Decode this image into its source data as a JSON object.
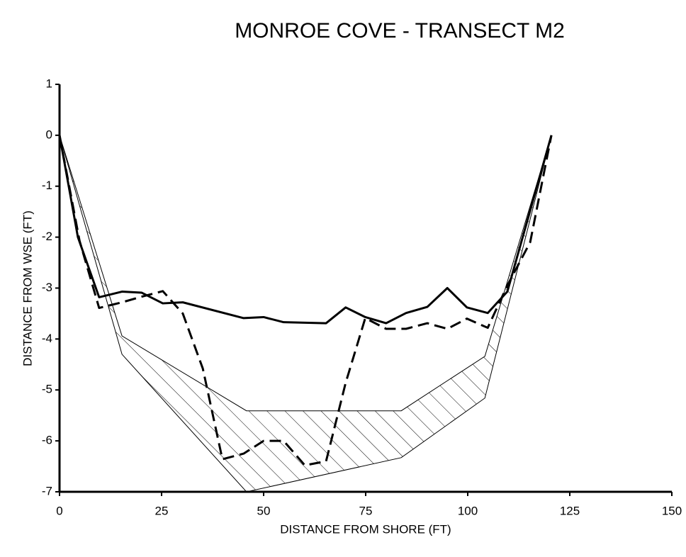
{
  "chart_data": {
    "type": "line",
    "title": "MONROE COVE - TRANSECT M2",
    "xlabel": "DISTANCE FROM SHORE (FT)",
    "ylabel": "DISTANCE FROM WSE (FT)",
    "xlim": [
      0,
      150
    ],
    "xticks": [
      0,
      25,
      50,
      75,
      100,
      125,
      150
    ],
    "ylim": [
      -7,
      1
    ],
    "yticks": [
      1,
      0,
      -1,
      -2,
      -3,
      -4,
      -5,
      -6,
      -7
    ],
    "grid": false,
    "series": [
      {
        "color": "#000000",
        "dash": false,
        "x": [
          0,
          4.5,
          9.7,
          15.3,
          20.1,
          25.3,
          30.2,
          45.1,
          50,
          54.9,
          65.3,
          70.1,
          74.9,
          80,
          84.9,
          90.1,
          95,
          99.8,
          104.9,
          109.7,
          120.5
        ],
        "values": [
          0,
          -2.0,
          -3.18,
          -3.07,
          -3.09,
          -3.3,
          -3.28,
          -3.59,
          -3.57,
          -3.67,
          -3.69,
          -3.38,
          -3.57,
          -3.69,
          -3.49,
          -3.37,
          -3.0,
          -3.38,
          -3.49,
          -3.07,
          0
        ]
      },
      {
        "color": "#000000",
        "dash": true,
        "x": [
          0,
          4.9,
          9.7,
          15.3,
          20.1,
          25.3,
          30.2,
          35.1,
          39.9,
          45.1,
          50,
          54.9,
          60.1,
          65.3,
          70.1,
          74.9,
          80,
          84.9,
          90.1,
          95,
          99.8,
          104.9,
          109.7,
          115.3,
          120.5
        ],
        "values": [
          0,
          -2.07,
          -3.39,
          -3.28,
          -3.17,
          -3.06,
          -3.5,
          -4.58,
          -6.36,
          -6.25,
          -6.0,
          -6.0,
          -6.48,
          -6.4,
          -4.86,
          -3.59,
          -3.8,
          -3.8,
          -3.69,
          -3.8,
          -3.6,
          -3.78,
          -2.95,
          -2.1,
          0
        ]
      }
    ],
    "band": {
      "color": "#000000",
      "x": [
        0,
        15.3,
        45.8,
        83.7,
        104.2,
        120.5
      ],
      "upper": [
        0,
        -3.94,
        -5.41,
        -5.41,
        -4.34,
        0
      ],
      "lower": [
        0,
        -4.3,
        -7.0,
        -6.33,
        -5.16,
        0
      ]
    }
  }
}
